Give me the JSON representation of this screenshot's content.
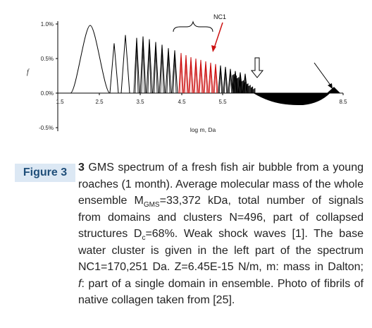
{
  "figure": {
    "chart_data": {
      "type": "line",
      "xlabel": "log m, Da",
      "ylabel": "f",
      "xlim": [
        1.5,
        8.5
      ],
      "ylim": [
        -0.5,
        1.0
      ],
      "x_ticks": [
        "1.5",
        "2.5",
        "3.5",
        "4.5",
        "5.5",
        "8.5"
      ],
      "y_ticks": [
        "1.0%",
        "0.5%",
        "0.0%",
        "-0.5%"
      ],
      "annotation": "NC1",
      "peak_heights": [
        0.98,
        0.72,
        0.84,
        0.8,
        0.82,
        0.78,
        0.74,
        0.7,
        0.65,
        0.62,
        0.58,
        0.55,
        0.52,
        0.5,
        0.48,
        0.46,
        0.44,
        0.42,
        0.4,
        0.38,
        0.35,
        0.32,
        0.3,
        0.28
      ]
    }
  },
  "caption": {
    "label": "Figure 3",
    "num": "3",
    "t1": " GMS spectrum of a fresh fish air bubble from a young roaches (1 month). Average molecular mass of the whole ensemble M",
    "sub1": "GMS",
    "t2": "=33,372 kDa, total number of signals from domains and clusters N=496, part of collapsed structures D",
    "sub2": "c",
    "t3": "=68%. Weak shock waves [1]. The base water cluster is given in the left part of the spectrum NC1=170,251 Da. Z=6.45E-15 N/m, m: mass in Dalton; ",
    "it": "f",
    "t4": ": part of a single domain in ensemble. Photo of fibrils of native collagen taken from [25]."
  }
}
